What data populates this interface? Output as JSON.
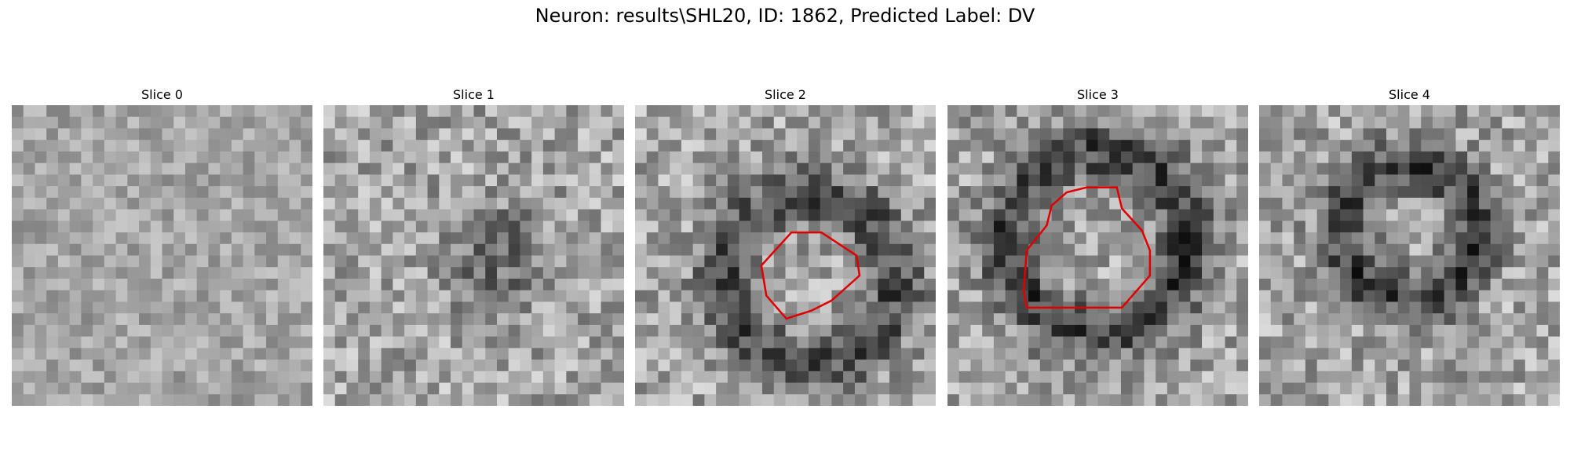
{
  "title": "Neuron: results\\SHL20, ID: 1862, Predicted Label: DV",
  "panels": [
    {
      "title": "Slice 0"
    },
    {
      "title": "Slice 1"
    },
    {
      "title": "Slice 2"
    },
    {
      "title": "Slice 3"
    },
    {
      "title": "Slice 4"
    }
  ]
}
